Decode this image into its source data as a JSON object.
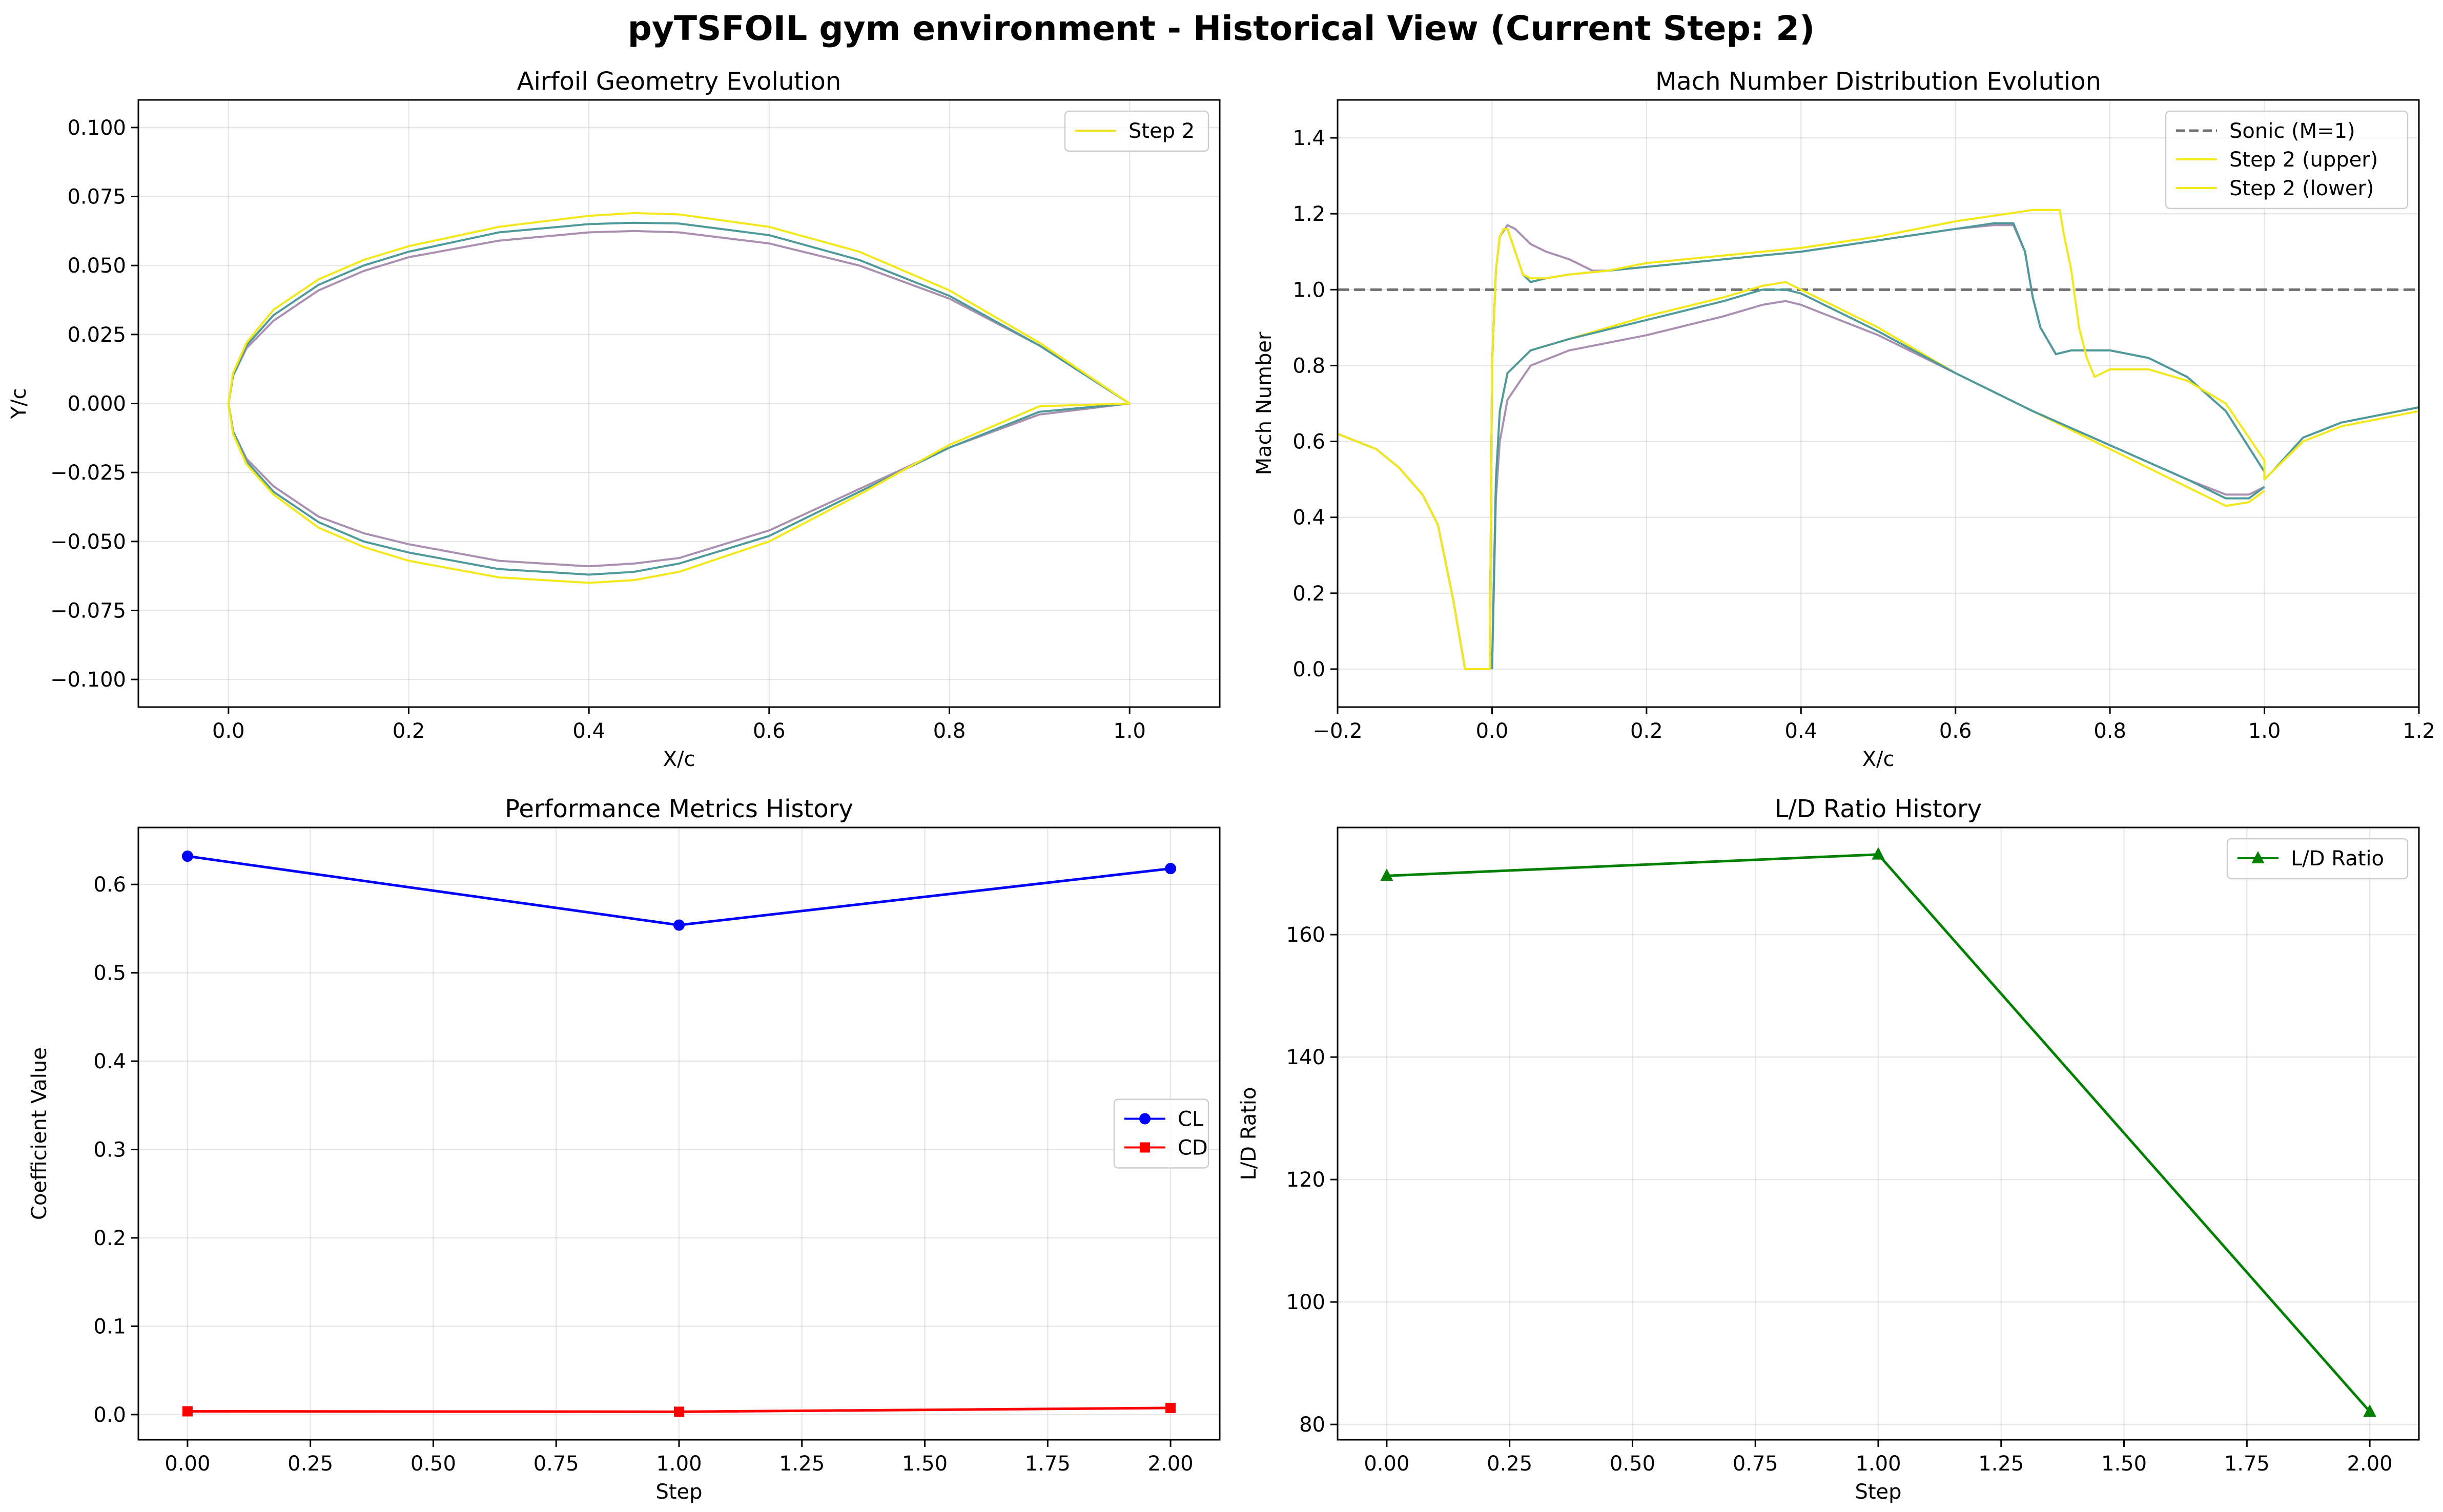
{
  "figure": {
    "suptitle": "pyTSFOIL gym environment - Historical View (Current Step: 2)"
  },
  "chart_data": [
    {
      "id": "geometry",
      "type": "line",
      "title": "Airfoil Geometry Evolution",
      "xlabel": "X/c",
      "ylabel": "Y/c",
      "xlim": [
        -0.1,
        1.1
      ],
      "ylim": [
        -0.11,
        0.11
      ],
      "xticks": [
        0.0,
        0.2,
        0.4,
        0.6,
        0.8,
        1.0
      ],
      "xtick_labels": [
        "0.0",
        "0.2",
        "0.4",
        "0.6",
        "0.8",
        "1.0"
      ],
      "yticks": [
        -0.1,
        -0.075,
        -0.05,
        -0.025,
        0.0,
        0.025,
        0.05,
        0.075,
        0.1
      ],
      "ytick_labels": [
        "−0.100",
        "−0.075",
        "−0.050",
        "−0.025",
        "0.000",
        "0.025",
        "0.050",
        "0.075",
        "0.100"
      ],
      "grid": true,
      "legend_position": "upper right",
      "series": [
        {
          "name": "",
          "color": "#a98fb0",
          "x": [
            0.0,
            0.005,
            0.02,
            0.05,
            0.1,
            0.15,
            0.2,
            0.3,
            0.4,
            0.45,
            0.5,
            0.6,
            0.7,
            0.8,
            0.9,
            1.0
          ],
          "upper": [
            0.0,
            0.01,
            0.02,
            0.03,
            0.041,
            0.048,
            0.053,
            0.059,
            0.062,
            0.0625,
            0.062,
            0.058,
            0.05,
            0.038,
            0.021,
            0.0
          ],
          "lower": [
            0.0,
            -0.01,
            -0.02,
            -0.03,
            -0.041,
            -0.047,
            -0.051,
            -0.057,
            -0.059,
            -0.058,
            -0.056,
            -0.046,
            -0.031,
            -0.016,
            -0.004,
            0.0
          ]
        },
        {
          "name": "",
          "color": "#4e9a9a",
          "x": [
            0.0,
            0.005,
            0.02,
            0.05,
            0.1,
            0.15,
            0.2,
            0.3,
            0.4,
            0.45,
            0.5,
            0.6,
            0.7,
            0.8,
            0.9,
            1.0
          ],
          "upper": [
            0.0,
            0.01,
            0.021,
            0.032,
            0.043,
            0.05,
            0.055,
            0.062,
            0.065,
            0.0655,
            0.0652,
            0.061,
            0.052,
            0.039,
            0.021,
            0.0
          ],
          "lower": [
            0.0,
            -0.01,
            -0.021,
            -0.032,
            -0.043,
            -0.05,
            -0.054,
            -0.06,
            -0.062,
            -0.061,
            -0.058,
            -0.048,
            -0.032,
            -0.016,
            -0.003,
            0.0
          ]
        },
        {
          "name": "Step 2",
          "color": "#f2e81a",
          "x": [
            0.0,
            0.005,
            0.02,
            0.05,
            0.1,
            0.15,
            0.2,
            0.3,
            0.4,
            0.45,
            0.5,
            0.6,
            0.7,
            0.8,
            0.9,
            1.0
          ],
          "upper": [
            0.0,
            0.011,
            0.022,
            0.034,
            0.045,
            0.052,
            0.057,
            0.064,
            0.068,
            0.069,
            0.0685,
            0.064,
            0.055,
            0.041,
            0.022,
            0.0
          ],
          "lower": [
            0.0,
            -0.011,
            -0.022,
            -0.033,
            -0.045,
            -0.052,
            -0.057,
            -0.063,
            -0.065,
            -0.064,
            -0.061,
            -0.05,
            -0.033,
            -0.015,
            -0.001,
            0.0
          ]
        }
      ]
    },
    {
      "id": "mach",
      "type": "line",
      "title": "Mach Number Distribution Evolution",
      "xlabel": "X/c",
      "ylabel": "Mach Number",
      "xlim": [
        -0.2,
        1.2
      ],
      "ylim": [
        -0.1,
        1.5
      ],
      "xticks": [
        -0.2,
        0.0,
        0.2,
        0.4,
        0.6,
        0.8,
        1.0,
        1.2
      ],
      "xtick_labels": [
        "−0.2",
        "0.0",
        "0.2",
        "0.4",
        "0.6",
        "0.8",
        "1.0",
        "1.2"
      ],
      "yticks": [
        0.0,
        0.2,
        0.4,
        0.6,
        0.8,
        1.0,
        1.2,
        1.4
      ],
      "ytick_labels": [
        "0.0",
        "0.2",
        "0.4",
        "0.6",
        "0.8",
        "1.0",
        "1.2",
        "1.4"
      ],
      "grid": true,
      "legend_position": "upper right",
      "reference_line": {
        "name": "Sonic (M=1)",
        "y": 1.0,
        "color": "#707070"
      },
      "series": [
        {
          "name": "",
          "color": "#a98fb0",
          "x": [
            -0.2,
            -0.15,
            -0.12,
            -0.09,
            -0.07,
            -0.05,
            -0.035,
            -0.02,
            -0.003,
            0.0,
            0.005,
            0.01,
            0.02,
            0.03,
            0.05,
            0.07,
            0.1,
            0.13,
            0.15,
            0.2,
            0.3,
            0.4,
            0.5,
            0.6,
            0.65,
            0.675,
            0.69,
            0.7,
            0.71,
            0.73,
            0.75,
            0.8,
            0.85,
            0.9,
            0.95,
            1.0,
            1.0,
            1.01,
            1.05,
            1.1,
            1.2
          ],
          "y": [
            0.62,
            0.58,
            0.53,
            0.46,
            0.38,
            0.18,
            0.0,
            0.0,
            0.0,
            0.8,
            1.05,
            1.14,
            1.17,
            1.16,
            1.12,
            1.1,
            1.08,
            1.05,
            1.05,
            1.06,
            1.08,
            1.1,
            1.13,
            1.16,
            1.17,
            1.17,
            1.1,
            0.98,
            0.9,
            0.83,
            0.84,
            0.84,
            0.82,
            0.77,
            0.68,
            0.52,
            0.5,
            0.52,
            0.61,
            0.65,
            0.69
          ]
        },
        {
          "name": "",
          "color": "#4e9a9a",
          "x": [
            -0.2,
            -0.15,
            -0.12,
            -0.09,
            -0.07,
            -0.05,
            -0.035,
            -0.02,
            -0.003,
            0.0,
            0.005,
            0.01,
            0.015,
            0.02,
            0.03,
            0.04,
            0.05,
            0.07,
            0.1,
            0.15,
            0.2,
            0.3,
            0.4,
            0.5,
            0.6,
            0.65,
            0.675,
            0.69,
            0.7,
            0.71,
            0.73,
            0.75,
            0.8,
            0.85,
            0.9,
            0.95,
            1.0,
            1.0,
            1.01,
            1.05,
            1.1,
            1.2
          ],
          "y": [
            0.62,
            0.58,
            0.53,
            0.46,
            0.38,
            0.18,
            0.0,
            0.0,
            0.0,
            0.8,
            1.05,
            1.14,
            1.16,
            1.16,
            1.1,
            1.04,
            1.02,
            1.03,
            1.04,
            1.05,
            1.06,
            1.08,
            1.1,
            1.13,
            1.16,
            1.175,
            1.175,
            1.1,
            0.98,
            0.9,
            0.83,
            0.84,
            0.84,
            0.82,
            0.77,
            0.68,
            0.52,
            0.5,
            0.52,
            0.61,
            0.65,
            0.69
          ]
        },
        {
          "name": "Step 2 (upper)",
          "color": "#f2e81a",
          "x": [
            -0.2,
            -0.15,
            -0.12,
            -0.09,
            -0.07,
            -0.05,
            -0.035,
            -0.02,
            -0.003,
            0.0,
            0.005,
            0.01,
            0.015,
            0.02,
            0.03,
            0.04,
            0.05,
            0.07,
            0.1,
            0.15,
            0.2,
            0.3,
            0.4,
            0.5,
            0.6,
            0.7,
            0.735,
            0.74,
            0.75,
            0.76,
            0.77,
            0.78,
            0.8,
            0.85,
            0.9,
            0.95,
            1.0,
            1.0,
            1.01,
            1.05,
            1.1,
            1.2
          ],
          "y": [
            0.62,
            0.58,
            0.53,
            0.46,
            0.38,
            0.18,
            0.0,
            0.0,
            0.0,
            0.8,
            1.05,
            1.14,
            1.16,
            1.16,
            1.1,
            1.04,
            1.03,
            1.03,
            1.04,
            1.05,
            1.07,
            1.09,
            1.11,
            1.14,
            1.18,
            1.21,
            1.21,
            1.15,
            1.05,
            0.9,
            0.82,
            0.77,
            0.79,
            0.79,
            0.76,
            0.7,
            0.55,
            0.5,
            0.52,
            0.6,
            0.64,
            0.68
          ]
        },
        {
          "name": "Step 2 (lower)",
          "color": "#f2e81a",
          "x": [
            0.0,
            0.005,
            0.01,
            0.02,
            0.05,
            0.1,
            0.2,
            0.3,
            0.35,
            0.38,
            0.4,
            0.5,
            0.6,
            0.7,
            0.8,
            0.9,
            0.95,
            0.98,
            1.0
          ],
          "y": [
            0.0,
            0.5,
            0.68,
            0.78,
            0.84,
            0.87,
            0.93,
            0.98,
            1.01,
            1.02,
            1.0,
            0.9,
            0.78,
            0.68,
            0.58,
            0.48,
            0.43,
            0.44,
            0.47
          ]
        },
        {
          "name": "",
          "color": "#a98fb0",
          "x": [
            0.0,
            0.005,
            0.01,
            0.02,
            0.05,
            0.1,
            0.2,
            0.3,
            0.35,
            0.38,
            0.4,
            0.5,
            0.6,
            0.7,
            0.8,
            0.9,
            0.95,
            0.98,
            1.0
          ],
          "y": [
            0.0,
            0.45,
            0.6,
            0.71,
            0.8,
            0.84,
            0.88,
            0.93,
            0.96,
            0.97,
            0.96,
            0.88,
            0.78,
            0.68,
            0.59,
            0.5,
            0.46,
            0.46,
            0.48
          ]
        },
        {
          "name": "",
          "color": "#4e9a9a",
          "x": [
            0.0,
            0.005,
            0.01,
            0.02,
            0.05,
            0.1,
            0.2,
            0.3,
            0.35,
            0.38,
            0.4,
            0.5,
            0.6,
            0.7,
            0.8,
            0.9,
            0.95,
            0.98,
            1.0
          ],
          "y": [
            0.0,
            0.5,
            0.68,
            0.78,
            0.84,
            0.87,
            0.92,
            0.97,
            1.0,
            1.0,
            0.99,
            0.89,
            0.78,
            0.68,
            0.59,
            0.5,
            0.45,
            0.45,
            0.48
          ]
        }
      ]
    },
    {
      "id": "performance",
      "type": "line",
      "title": "Performance Metrics History",
      "xlabel": "Step",
      "ylabel": "Coefficient Value",
      "xlim": [
        -0.1,
        2.1
      ],
      "ylim": [
        -0.0285,
        0.6645
      ],
      "xticks": [
        0.0,
        0.25,
        0.5,
        0.75,
        1.0,
        1.25,
        1.5,
        1.75,
        2.0
      ],
      "xtick_labels": [
        "0.00",
        "0.25",
        "0.50",
        "0.75",
        "1.00",
        "1.25",
        "1.50",
        "1.75",
        "2.00"
      ],
      "yticks": [
        0.0,
        0.1,
        0.2,
        0.3,
        0.4,
        0.5,
        0.6
      ],
      "ytick_labels": [
        "0.0",
        "0.1",
        "0.2",
        "0.3",
        "0.4",
        "0.5",
        "0.6"
      ],
      "grid": true,
      "legend_position": "center right",
      "series": [
        {
          "name": "CL",
          "color": "#0000ff",
          "marker": "circle",
          "x": [
            0,
            1,
            2
          ],
          "y": [
            0.632,
            0.554,
            0.618
          ]
        },
        {
          "name": "CD",
          "color": "#ff0000",
          "marker": "square",
          "x": [
            0,
            1,
            2
          ],
          "y": [
            0.0037,
            0.0032,
            0.0075
          ]
        }
      ]
    },
    {
      "id": "ld",
      "type": "line",
      "title": "L/D Ratio History",
      "xlabel": "Step",
      "ylabel": "L/D Ratio",
      "xlim": [
        -0.1,
        2.1
      ],
      "ylim": [
        77.5,
        177.5
      ],
      "xticks": [
        0.0,
        0.25,
        0.5,
        0.75,
        1.0,
        1.25,
        1.5,
        1.75,
        2.0
      ],
      "xtick_labels": [
        "0.00",
        "0.25",
        "0.50",
        "0.75",
        "1.00",
        "1.25",
        "1.50",
        "1.75",
        "2.00"
      ],
      "yticks": [
        80,
        100,
        120,
        140,
        160
      ],
      "ytick_labels": [
        "80",
        "100",
        "120",
        "140",
        "160"
      ],
      "grid": true,
      "legend_position": "upper right",
      "series": [
        {
          "name": "L/D Ratio",
          "color": "#008000",
          "marker": "triangle",
          "x": [
            0,
            1,
            2
          ],
          "y": [
            169.6,
            173.1,
            82.1
          ]
        }
      ]
    }
  ]
}
